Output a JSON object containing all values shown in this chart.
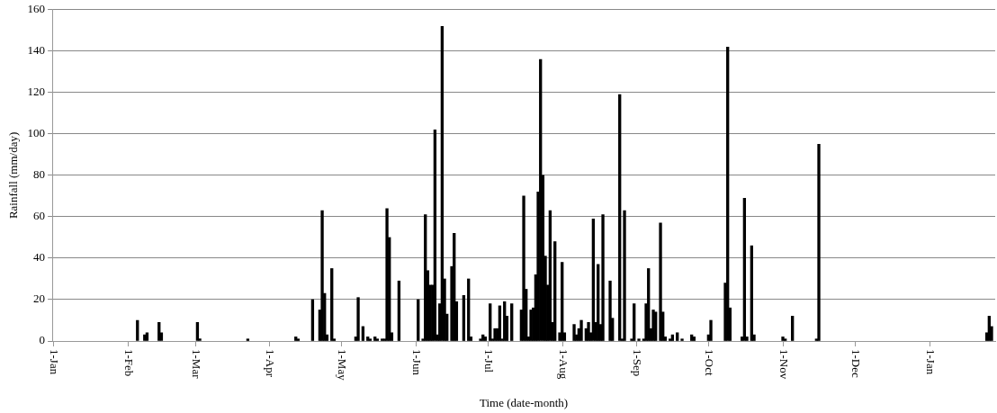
{
  "chart_data": {
    "type": "bar",
    "xlabel": "Time (date-month)",
    "ylabel": "Rainfall (mm/day)",
    "color": "#000000",
    "grid": "y",
    "ylim": [
      0,
      160
    ],
    "yticks": [
      0,
      20,
      40,
      60,
      80,
      100,
      120,
      140,
      160
    ],
    "categories": [
      "1-Jan",
      null,
      null,
      null,
      null,
      null,
      null,
      null,
      null,
      null,
      null,
      null,
      null,
      null,
      null,
      null,
      null,
      null,
      null,
      null,
      null,
      null,
      null,
      null,
      null,
      null,
      null,
      null,
      null,
      null,
      null,
      "1-Feb",
      null,
      null,
      null,
      null,
      null,
      null,
      null,
      null,
      null,
      null,
      null,
      null,
      null,
      null,
      null,
      null,
      null,
      null,
      null,
      null,
      null,
      null,
      null,
      null,
      null,
      null,
      null,
      "1-Mar",
      null,
      null,
      null,
      null,
      null,
      null,
      null,
      null,
      null,
      null,
      null,
      null,
      null,
      null,
      null,
      null,
      null,
      null,
      null,
      null,
      null,
      null,
      null,
      null,
      null,
      null,
      null,
      null,
      null,
      null,
      "1-Apr",
      null,
      null,
      null,
      null,
      null,
      null,
      null,
      null,
      null,
      null,
      null,
      null,
      null,
      null,
      null,
      null,
      null,
      null,
      null,
      null,
      null,
      null,
      null,
      null,
      null,
      null,
      null,
      null,
      null,
      "1-May",
      null,
      null,
      null,
      null,
      null,
      null,
      null,
      null,
      null,
      null,
      null,
      null,
      null,
      null,
      null,
      null,
      null,
      null,
      null,
      null,
      null,
      null,
      null,
      null,
      null,
      null,
      null,
      null,
      null,
      null,
      "1-Jun",
      null,
      null,
      null,
      null,
      null,
      null,
      null,
      null,
      null,
      null,
      null,
      null,
      null,
      null,
      null,
      null,
      null,
      null,
      null,
      null,
      null,
      null,
      null,
      null,
      null,
      null,
      null,
      null,
      null,
      "1-Jul",
      null,
      null,
      null,
      null,
      null,
      null,
      null,
      null,
      null,
      null,
      null,
      null,
      null,
      null,
      null,
      null,
      null,
      null,
      null,
      null,
      null,
      null,
      null,
      null,
      null,
      null,
      null,
      null,
      null,
      null,
      "1-Aug",
      null,
      null,
      null,
      null,
      null,
      null,
      null,
      null,
      null,
      null,
      null,
      null,
      null,
      null,
      null,
      null,
      null,
      null,
      null,
      null,
      null,
      null,
      null,
      null,
      null,
      null,
      null,
      null,
      null,
      null,
      "1-Sep",
      null,
      null,
      null,
      null,
      null,
      null,
      null,
      null,
      null,
      null,
      null,
      null,
      null,
      null,
      null,
      null,
      null,
      null,
      null,
      null,
      null,
      null,
      null,
      null,
      null,
      null,
      null,
      null,
      null,
      "1-Oct",
      null,
      null,
      null,
      null,
      null,
      null,
      null,
      null,
      null,
      null,
      null,
      null,
      null,
      null,
      null,
      null,
      null,
      null,
      null,
      null,
      null,
      null,
      null,
      null,
      null,
      null,
      null,
      null,
      null,
      null,
      "1-Nov",
      null,
      null,
      null,
      null,
      null,
      null,
      null,
      null,
      null,
      null,
      null,
      null,
      null,
      null,
      null,
      null,
      null,
      null,
      null,
      null,
      null,
      null,
      null,
      null,
      null,
      null,
      null,
      null,
      null,
      "1-Dec",
      null,
      null,
      null,
      null,
      null,
      null,
      null,
      null,
      null,
      null,
      null,
      null,
      null,
      null,
      null,
      null,
      null,
      null,
      null,
      null,
      null,
      null,
      null,
      null,
      null,
      null,
      null,
      null,
      null,
      null,
      "1-Jan",
      null,
      null,
      null,
      null,
      null,
      null,
      null,
      null,
      null,
      null,
      null,
      null,
      null,
      null,
      null,
      null,
      null,
      null,
      null,
      null,
      null,
      null,
      null,
      null,
      null,
      null,
      null
    ],
    "values": [
      null,
      null,
      null,
      null,
      null,
      null,
      null,
      null,
      null,
      null,
      null,
      null,
      null,
      null,
      null,
      null,
      null,
      null,
      null,
      null,
      null,
      null,
      null,
      null,
      null,
      null,
      null,
      null,
      null,
      null,
      null,
      null,
      null,
      null,
      null,
      10,
      null,
      null,
      3,
      4,
      null,
      null,
      null,
      null,
      9,
      4,
      null,
      null,
      null,
      null,
      null,
      null,
      null,
      null,
      null,
      null,
      null,
      null,
      null,
      null,
      9,
      1,
      null,
      null,
      null,
      null,
      null,
      null,
      null,
      null,
      null,
      null,
      null,
      null,
      null,
      null,
      null,
      null,
      null,
      null,
      null,
      1,
      null,
      null,
      null,
      null,
      null,
      null,
      null,
      null,
      null,
      null,
      null,
      null,
      null,
      null,
      null,
      null,
      null,
      null,
      null,
      2,
      1,
      null,
      null,
      null,
      null,
      null,
      20,
      null,
      null,
      15,
      63,
      23,
      3,
      null,
      35,
      1,
      null,
      null,
      null,
      null,
      null,
      null,
      null,
      null,
      2,
      21,
      null,
      7,
      null,
      2,
      1,
      null,
      2,
      1,
      null,
      1,
      1,
      64,
      50,
      4,
      null,
      null,
      29,
      null,
      null,
      null,
      null,
      null,
      null,
      null,
      20,
      null,
      1,
      61,
      34,
      27,
      27,
      102,
      3,
      18,
      152,
      30,
      13,
      null,
      36,
      52,
      19,
      null,
      null,
      22,
      null,
      30,
      2,
      null,
      null,
      null,
      1,
      3,
      2,
      null,
      18,
      1,
      6,
      6,
      17,
      1,
      19,
      12,
      null,
      18,
      null,
      null,
      null,
      15,
      70,
      25,
      2,
      15,
      16,
      32,
      72,
      136,
      80,
      41,
      27,
      63,
      9,
      48,
      null,
      4,
      38,
      4,
      null,
      null,
      null,
      8,
      3,
      6,
      10,
      null,
      6,
      9,
      4,
      59,
      9,
      37,
      8,
      61,
      null,
      null,
      29,
      11,
      null,
      null,
      119,
      1,
      63,
      null,
      null,
      1,
      18,
      null,
      1,
      null,
      1,
      18,
      35,
      6,
      15,
      14,
      null,
      57,
      14,
      2,
      null,
      1,
      3,
      null,
      4,
      null,
      1,
      null,
      null,
      null,
      3,
      2,
      null,
      null,
      null,
      null,
      null,
      3,
      10,
      null,
      null,
      null,
      null,
      null,
      28,
      142,
      16,
      null,
      null,
      null,
      null,
      2,
      69,
      2,
      null,
      46,
      3,
      null,
      null,
      null,
      null,
      null,
      null,
      null,
      null,
      null,
      null,
      null,
      2,
      1,
      null,
      null,
      12,
      null,
      null,
      null,
      null,
      null,
      null,
      null,
      null,
      null,
      1,
      95,
      null,
      null,
      null,
      null,
      null,
      null,
      null,
      null,
      null,
      null,
      null,
      null,
      null,
      null,
      null,
      null,
      null,
      null,
      null,
      null,
      null,
      null,
      null,
      null,
      null,
      null,
      null,
      null,
      null,
      null,
      null,
      null,
      null,
      null,
      null,
      null,
      null,
      null,
      null,
      null,
      null,
      null,
      null,
      null,
      null,
      null,
      null,
      null,
      null,
      null,
      null,
      null,
      null,
      null,
      null,
      null,
      null,
      null,
      null,
      null,
      null,
      null,
      null,
      null,
      null,
      null,
      null,
      null,
      null,
      4,
      12,
      7,
      null
    ]
  }
}
